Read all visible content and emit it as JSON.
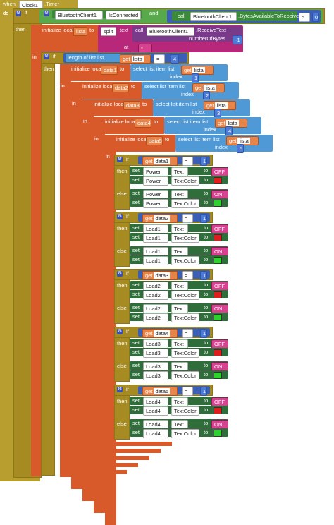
{
  "event": {
    "when": "when",
    "component": "Clock1",
    "method": ".Timer",
    "do": "do"
  },
  "outer_if": {
    "if": "if",
    "component": "BluetoothClient1",
    "property": "IsConnected",
    "and": "and",
    "call": "call",
    "bt_call": "BluetoothClient1",
    "bytes_method": ".BytesAvailableToReceive",
    "op": ">",
    "zero": "0",
    "then": "then"
  },
  "init_list": {
    "label": "initialize local",
    "var": "lista",
    "to": "to",
    "split": "split",
    "text": "text",
    "call": "call",
    "bt": "BluetoothClient1",
    "receive": ".ReceiveText",
    "numberOfBytes": "numberOfBytes",
    "neg1": "-1",
    "at": "at",
    "star": "*"
  },
  "in_label": "in",
  "len_if": {
    "if": "if",
    "length": "length of list  list",
    "get": "get",
    "var": "lista",
    "op": "=",
    "val": "4",
    "then": "then"
  },
  "inits": [
    {
      "label": "initialize local",
      "var": "data1",
      "to": "to",
      "select": "select list item  list",
      "get": "get",
      "list": "lista",
      "index": "index",
      "idx": "1",
      "in": "in"
    },
    {
      "label": "initialize local",
      "var": "data2",
      "to": "to",
      "select": "select list item  list",
      "get": "get",
      "list": "lista",
      "index": "index",
      "idx": "2",
      "in": "in"
    },
    {
      "label": "initialize local",
      "var": "data3",
      "to": "to",
      "select": "select list item  list",
      "get": "get",
      "list": "lista",
      "index": "index",
      "idx": "3",
      "in": "in"
    },
    {
      "label": "initialize local",
      "var": "data4",
      "to": "to",
      "select": "select list item  list",
      "get": "get",
      "list": "lista",
      "index": "index",
      "idx": "4",
      "in": "in"
    },
    {
      "label": "initialize local",
      "var": "data5",
      "to": "to",
      "select": "select list item  list",
      "get": "get",
      "list": "lista",
      "index": "index",
      "idx": "5",
      "in": "in"
    }
  ],
  "conds": [
    {
      "if": "if",
      "get": "get",
      "var": "data1",
      "op": "=",
      "val": "1",
      "then": "then",
      "else": "else",
      "comp": "Power",
      "set": "set",
      "text_prop": "Text",
      "color_prop": "TextColor",
      "to": "to",
      "off": "OFF",
      "on": "ON"
    },
    {
      "if": "if",
      "get": "get",
      "var": "data2",
      "op": "=",
      "val": "1",
      "then": "then",
      "else": "else",
      "comp": "Load1",
      "set": "set",
      "text_prop": "Text",
      "color_prop": "TextColor",
      "to": "to",
      "off": "OFF",
      "on": "ON"
    },
    {
      "if": "if",
      "get": "get",
      "var": "data3",
      "op": "=",
      "val": "1",
      "then": "then",
      "else": "else",
      "comp": "Load2",
      "set": "set",
      "text_prop": "Text",
      "color_prop": "TextColor",
      "to": "to",
      "off": "OFF",
      "on": "ON"
    },
    {
      "if": "if",
      "get": "get",
      "var": "data4",
      "op": "=",
      "val": "1",
      "then": "then",
      "else": "else",
      "comp": "Load3",
      "set": "set",
      "text_prop": "Text",
      "color_prop": "TextColor",
      "to": "to",
      "off": "OFF",
      "on": "ON"
    },
    {
      "if": "if",
      "get": "get",
      "var": "data5",
      "op": "=",
      "val": "1",
      "then": "then",
      "else": "else",
      "comp": "Load4",
      "set": "set",
      "text_prop": "Text",
      "color_prop": "TextColor",
      "to": "to",
      "off": "OFF",
      "on": "ON"
    }
  ],
  "colors": {
    "event": "#b79e2e",
    "local": "#d85a2a",
    "list": "#4f9ad6",
    "text": "#b8287a",
    "set": "#2f6e3a",
    "red": "#e01c1c",
    "green": "#2fd12f"
  }
}
